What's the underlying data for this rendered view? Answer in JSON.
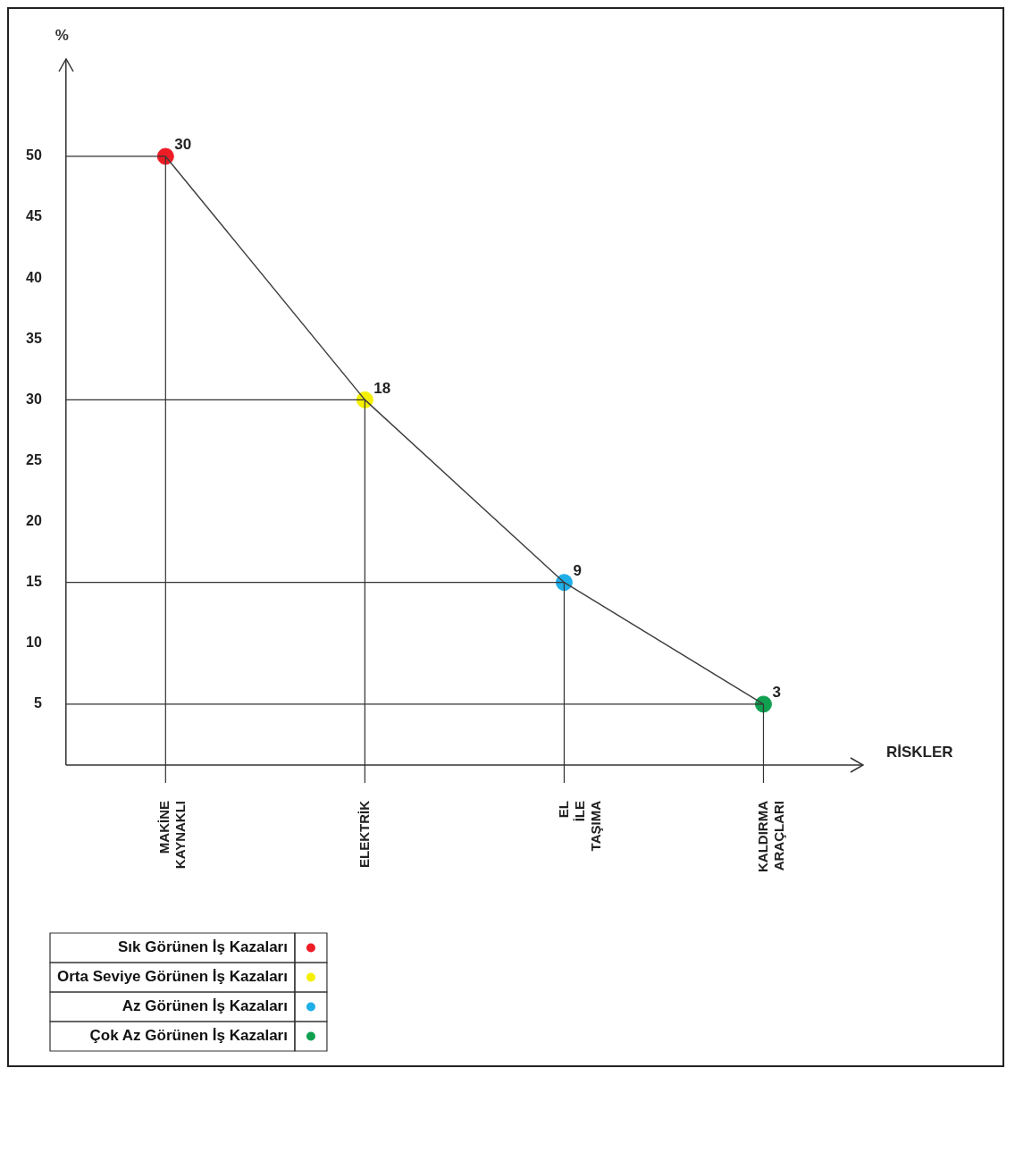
{
  "chart_data": {
    "type": "line",
    "ylabel": "%",
    "categories": [
      "MAKİNE KAYNAKLI",
      "ELEKTRİK",
      "EL İLE TAŞIMA",
      "KALDIRMA ARAÇLARI"
    ],
    "ylim": [
      0,
      58
    ],
    "yticks": [
      5,
      10,
      15,
      20,
      25,
      30,
      35,
      40,
      45,
      50
    ],
    "legend": "bottom left",
    "annotations": [
      "RİSKLER",
      {
        "text": "30",
        "x": "MAKİNE KAYNAKLI",
        "y": 50
      },
      {
        "text": "18",
        "x": "ELEKTRİK",
        "y": 30
      },
      {
        "text": "9",
        "x": "EL İLE TAŞIMA",
        "y": 15
      },
      {
        "text": "3",
        "x": "KALDIRMA ARAÇLARI",
        "y": 5
      }
    ],
    "series": [
      {
        "color": "#404040",
        "marker": "none",
        "values": [
          50,
          30,
          15,
          5
        ]
      },
      {
        "type": "scatter",
        "name": "Sık Görünen İş Kazaları",
        "color": "#ee1c25",
        "marker": "circle",
        "values": [
          50,
          null,
          null,
          null
        ]
      },
      {
        "type": "scatter",
        "name": "Orta Seviye Görünen İş Kazaları",
        "color": "#f5f000",
        "marker": "circle",
        "values": [
          null,
          30,
          null,
          null
        ]
      },
      {
        "type": "scatter",
        "name": "Az Görünen İş Kazaları",
        "color": "#1eaee8",
        "marker": "circle",
        "values": [
          null,
          null,
          15,
          null
        ]
      },
      {
        "type": "scatter",
        "name": "Çok Az Görünen İş Kazaları",
        "color": "#10a050",
        "marker": "circle",
        "values": [
          null,
          null,
          null,
          5
        ]
      }
    ]
  }
}
